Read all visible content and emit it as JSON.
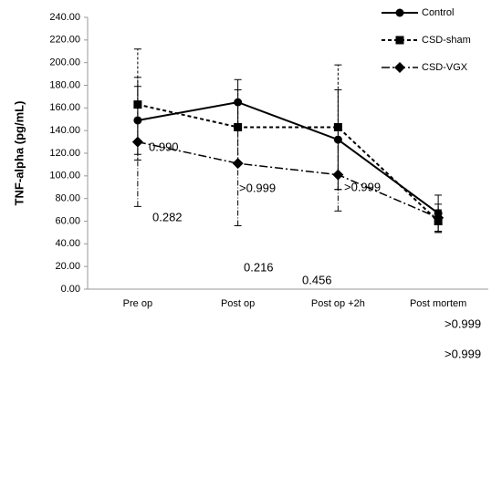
{
  "chart_data": {
    "type": "line",
    "y_label": "TNF-alpha (pg/mL)",
    "categories": [
      "Pre op",
      "Post op",
      "Post op +2h",
      "Post mortem"
    ],
    "series": [
      {
        "name": "Control",
        "color": "#000000",
        "dash": "solid",
        "marker": "circle",
        "values": [
          149,
          165,
          132,
          67
        ],
        "errors": [
          30,
          20,
          44,
          16
        ]
      },
      {
        "name": "CSD-sham",
        "color": "#000000",
        "dash": "dashed",
        "marker": "square",
        "values": [
          163,
          143,
          143,
          60
        ],
        "errors": [
          49,
          33,
          55,
          10
        ]
      },
      {
        "name": "CSD-VGX",
        "color": "#000000",
        "dash": "dashdot",
        "marker": "diamond",
        "values": [
          130,
          111,
          101,
          63
        ],
        "errors": [
          57,
          55,
          32,
          12
        ]
      }
    ],
    "annotations": [
      "0.990",
      "0.282",
      ">0.999",
      "0.216",
      "0.456",
      ">0.999",
      ">0.999",
      ">0.999"
    ],
    "ylim": [
      0,
      240
    ],
    "yticks": [
      {
        "value": 0,
        "label": "0.00"
      },
      {
        "value": 20,
        "label": "20.00"
      },
      {
        "value": 40,
        "label": "40.00"
      },
      {
        "value": 60,
        "label": "60.00"
      },
      {
        "value": 80,
        "label": "80.00"
      },
      {
        "value": 100,
        "label": "100.00"
      },
      {
        "value": 120,
        "label": "120.00"
      },
      {
        "value": 140,
        "label": "140.00"
      },
      {
        "value": 160,
        "label": "160.00"
      },
      {
        "value": 180,
        "label": "180.00"
      },
      {
        "value": 200,
        "label": "200.00"
      },
      {
        "value": 220,
        "label": "220.00"
      },
      {
        "value": 240,
        "label": "240.00"
      }
    ],
    "legend": "top-right"
  }
}
